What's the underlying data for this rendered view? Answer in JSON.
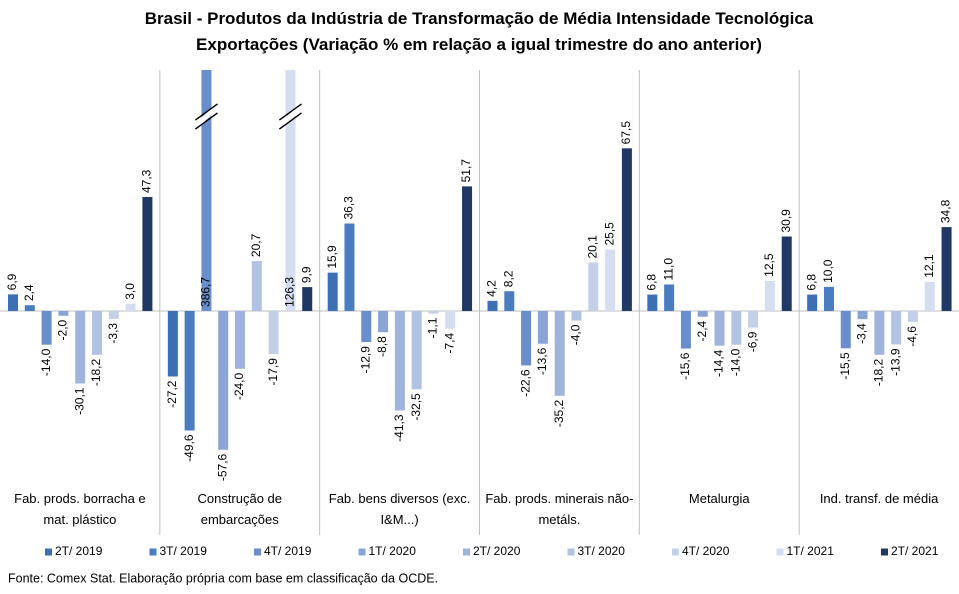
{
  "chart_data": {
    "type": "bar",
    "title": "Brasil - Produtos da Indústria de Transformação de Média Intensidade Tecnológica",
    "subtitle": "Exportações (Variação % em relação a igual trimestre do ano anterior)",
    "source": "Fonte: Comex Stat. Elaboração própria com base em classificação da OCDE.",
    "categories": [
      "Fab. prods. borracha e mat. plástico",
      "Construção de embarcações",
      "Fab. bens diversos (exc. I&M...)",
      "Fab. prods. minerais não-metáls.",
      "Metalurgia",
      "Ind. transf. de média"
    ],
    "ylim": [
      -66,
      100
    ],
    "series": [
      {
        "name": "2T/ 2019",
        "color": "#3d6fb3",
        "values": [
          6.9,
          -27.2,
          15.9,
          4.2,
          6.8,
          6.8
        ],
        "value_labels": [
          "6,9",
          "-27,2",
          "15,9",
          "4,2",
          "6,8",
          "6,8"
        ]
      },
      {
        "name": "3T/ 2019",
        "color": "#4a7cc0",
        "values": [
          2.4,
          -49.6,
          36.3,
          8.2,
          11.0,
          10.0
        ],
        "value_labels": [
          "2,4",
          "-49,6",
          "36,3",
          "8,2",
          "11,0",
          "10,0"
        ]
      },
      {
        "name": "4T/ 2019",
        "color": "#6a8ecb",
        "values": [
          -14.0,
          386.7,
          -12.9,
          -22.6,
          -15.6,
          -15.5
        ],
        "value_labels": [
          "-14,0",
          "386,7",
          "-12,9",
          "-22,6",
          "-15,6",
          "-15,5"
        ]
      },
      {
        "name": "1T/ 2020",
        "color": "#8aa4d5",
        "values": [
          -2.0,
          -57.6,
          -8.8,
          -13.6,
          -2.4,
          -3.4
        ],
        "value_labels": [
          "-2,0",
          "-57,6",
          "-8,8",
          "-13,6",
          "-2,4",
          "-3,4"
        ]
      },
      {
        "name": "2T/ 2020",
        "color": "#9fb3dc",
        "values": [
          -30.1,
          -24.0,
          -41.3,
          -35.2,
          -14.4,
          -18.2
        ],
        "value_labels": [
          "-30,1",
          "-24,0",
          "-41,3",
          "-35,2",
          "-14,4",
          "-18,2"
        ]
      },
      {
        "name": "3T/ 2020",
        "color": "#b2c2e2",
        "values": [
          -18.2,
          20.7,
          -32.5,
          -4.0,
          -14.0,
          -13.9
        ],
        "value_labels": [
          "-18,2",
          "20,7",
          "-32,5",
          "-4,0",
          "-14,0",
          "-13,9"
        ]
      },
      {
        "name": "4T/ 2020",
        "color": "#c4d0e8",
        "values": [
          -3.3,
          -17.9,
          -1.1,
          20.1,
          -6.9,
          -4.6
        ],
        "value_labels": [
          "-3,3",
          "-17,9",
          "-1,1",
          "20,1",
          "-6,9",
          "-4,6"
        ]
      },
      {
        "name": "1T/ 2021",
        "color": "#d5def0",
        "values": [
          3.0,
          126.3,
          -7.4,
          25.5,
          12.5,
          12.1
        ],
        "value_labels": [
          "3,0",
          "126,3",
          "-7,4",
          "25,5",
          "12,5",
          "12,1"
        ]
      },
      {
        "name": "2T/ 2021",
        "color": "#203864",
        "values": [
          47.3,
          9.9,
          51.7,
          67.5,
          30.9,
          34.8
        ],
        "value_labels": [
          "47,3",
          "9,9",
          "51,7",
          "67,5",
          "30,9",
          "34,8"
        ]
      }
    ]
  }
}
